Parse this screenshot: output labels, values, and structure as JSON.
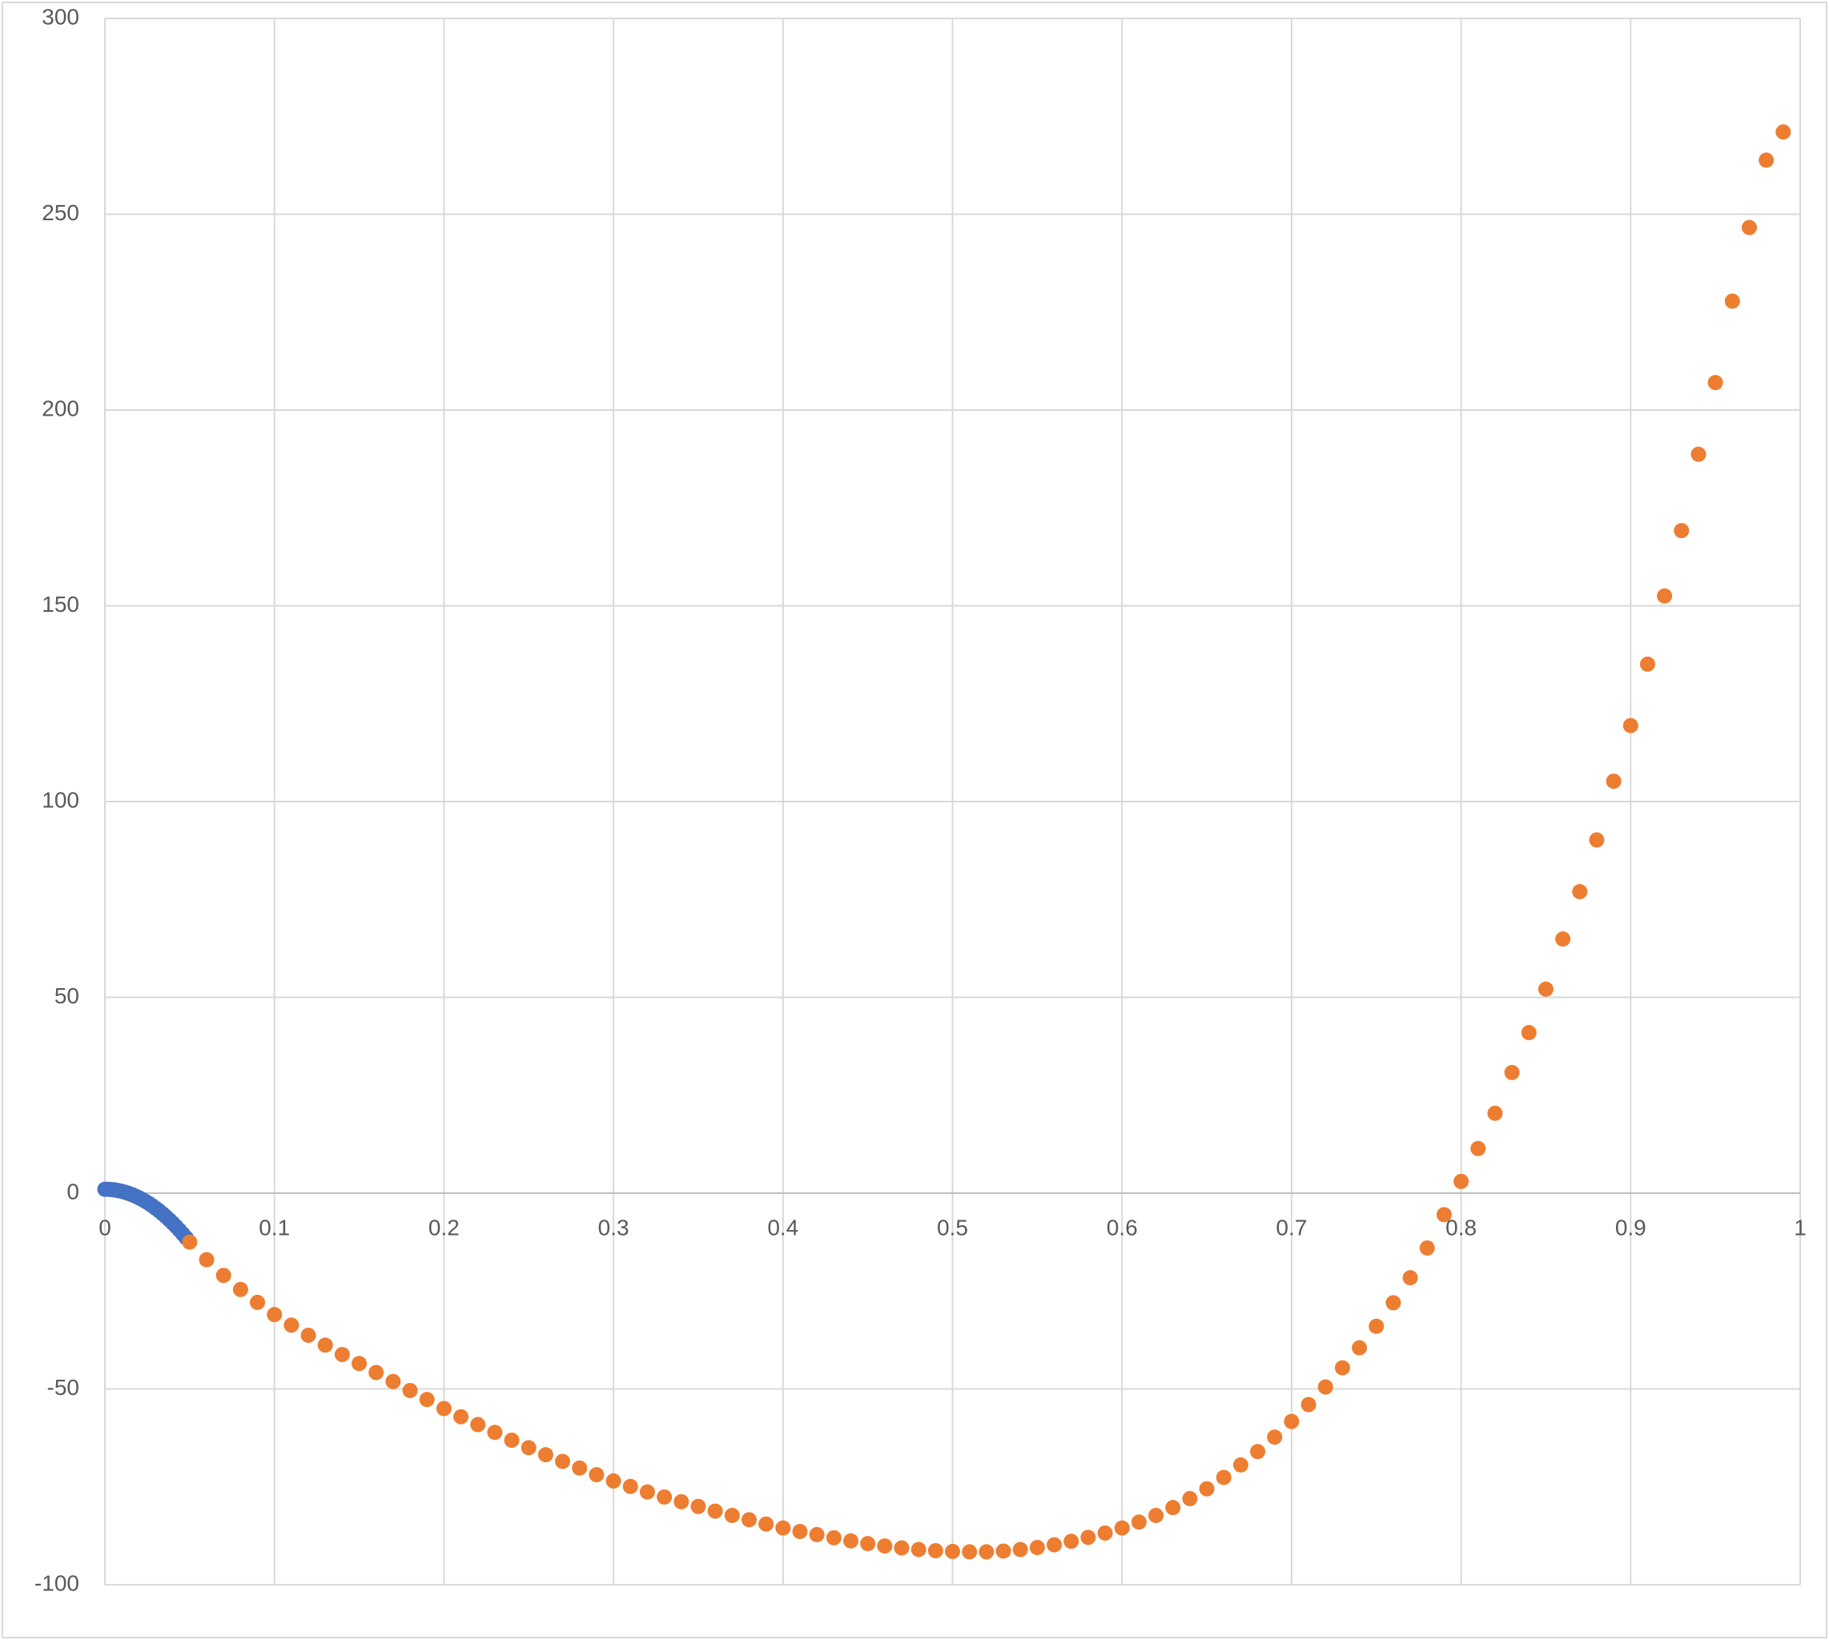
{
  "chart_data": {
    "type": "scatter",
    "xlim": [
      0,
      1
    ],
    "ylim": [
      -100,
      300
    ],
    "xticks": [
      0,
      0.1,
      0.2,
      0.3,
      0.4,
      0.5,
      0.6,
      0.7,
      0.8,
      0.9,
      1
    ],
    "yticks": [
      -100,
      -50,
      0,
      50,
      100,
      150,
      200,
      250,
      300
    ],
    "grid": true,
    "series": [
      {
        "color": "#4472c4",
        "x": [
          0,
          0.002,
          0.004,
          0.006,
          0.008,
          0.01,
          0.012,
          0.014,
          0.016,
          0.018,
          0.02,
          0.022,
          0.024,
          0.026,
          0.028,
          0.03,
          0.032,
          0.034,
          0.036,
          0.038,
          0.04,
          0.042,
          0.044,
          0.046,
          0.048
        ],
        "values": [
          1.0,
          0.98,
          0.91,
          0.81,
          0.65,
          0.46,
          0.22,
          -0.06,
          -0.38,
          -0.75,
          -1.16,
          -1.61,
          -2.11,
          -2.65,
          -3.23,
          -3.86,
          -4.53,
          -5.24,
          -6.0,
          -6.8,
          -7.64,
          -8.53,
          -9.45,
          -10.43,
          -11.44
        ]
      },
      {
        "color": "#ed7d31",
        "x": [
          0.05,
          0.06,
          0.07,
          0.08,
          0.09,
          0.1,
          0.11,
          0.12,
          0.13,
          0.14,
          0.15,
          0.16,
          0.17,
          0.18,
          0.19,
          0.2,
          0.21,
          0.22,
          0.23,
          0.24,
          0.25,
          0.26,
          0.27,
          0.28,
          0.29,
          0.3,
          0.31,
          0.32,
          0.33,
          0.34,
          0.35,
          0.36,
          0.37,
          0.38,
          0.39,
          0.4,
          0.41,
          0.42,
          0.43,
          0.44,
          0.45,
          0.46,
          0.47,
          0.48,
          0.49,
          0.5,
          0.51,
          0.52,
          0.53,
          0.54,
          0.55,
          0.56,
          0.57,
          0.58,
          0.59,
          0.6,
          0.61,
          0.62,
          0.63,
          0.64,
          0.65,
          0.66,
          0.67,
          0.68,
          0.69,
          0.7,
          0.71,
          0.72,
          0.73,
          0.74,
          0.75,
          0.76,
          0.77,
          0.78,
          0.79,
          0.8,
          0.81,
          0.82,
          0.83,
          0.84,
          0.85,
          0.86,
          0.87,
          0.88,
          0.89,
          0.9,
          0.91,
          0.92,
          0.93,
          0.94,
          0.95,
          0.96,
          0.97,
          0.98,
          0.99
        ],
        "values": [
          -12.5,
          -17.0,
          -21.0,
          -24.6,
          -27.9,
          -31.0,
          -33.7,
          -36.3,
          -38.8,
          -41.2,
          -43.5,
          -45.8,
          -48.1,
          -50.4,
          -52.7,
          -55.0,
          -57.1,
          -59.1,
          -61.1,
          -63.1,
          -65.0,
          -66.8,
          -68.5,
          -70.2,
          -71.9,
          -73.5,
          -74.9,
          -76.3,
          -77.6,
          -78.8,
          -80.0,
          -81.2,
          -82.3,
          -83.4,
          -84.5,
          -85.5,
          -86.4,
          -87.2,
          -88.0,
          -88.8,
          -89.5,
          -90.1,
          -90.6,
          -91.0,
          -91.3,
          -91.5,
          -91.6,
          -91.6,
          -91.4,
          -91.0,
          -90.5,
          -89.8,
          -88.9,
          -87.9,
          -86.8,
          -85.5,
          -84.0,
          -82.3,
          -80.3,
          -78.0,
          -75.5,
          -72.6,
          -69.4,
          -66.0,
          -62.3,
          -58.3,
          -54.0,
          -49.5,
          -44.6,
          -39.5,
          -34.0,
          -28.0,
          -21.6,
          -14.0,
          -5.5,
          3.0,
          11.4,
          20.4,
          30.8,
          41.0,
          52.1,
          64.9,
          77.0,
          90.2,
          105.2,
          119.4,
          135.1,
          152.5,
          169.2,
          188.7,
          207.0,
          227.8,
          246.6,
          263.8,
          271.0
        ]
      }
    ]
  }
}
